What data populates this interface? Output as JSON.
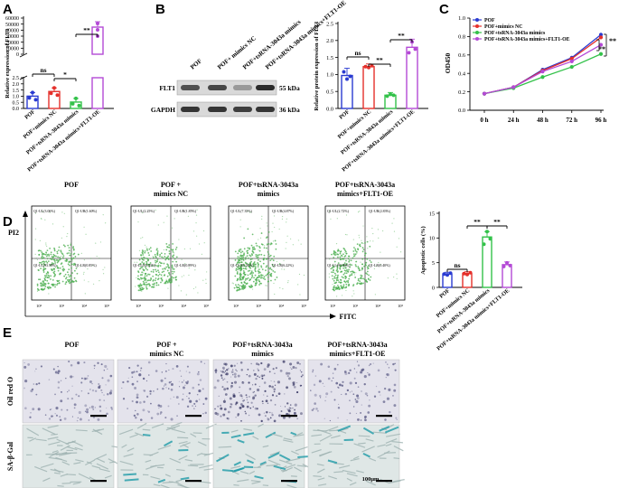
{
  "panels": {
    "A": "A",
    "B": "B",
    "C": "C",
    "D": "D",
    "E": "E"
  },
  "groups": [
    "POF",
    "POF+mimics NC",
    "POF+tsRNA-3043a mimics",
    "POF+tsRNA-3043a mimics+FLT1-OE"
  ],
  "colors": {
    "blue": "#2a3bd1",
    "red": "#e5302b",
    "green": "#33c24a",
    "purple": "#b44ad6",
    "sig": "#000000"
  },
  "chart_data": [
    {
      "id": "A",
      "type": "bar",
      "ylabel": "Relative expression of FLT1",
      "categories": [
        "POF",
        "POF+mimics NC",
        "POF+tsRNA-3043a mimics",
        "POF+tsRNA-3043a mimics+FLT1-OE"
      ],
      "values": [
        1.0,
        1.38,
        0.52,
        45000
      ],
      "yaxis_broken": true,
      "y_ticks_low": [
        "0.0",
        "0.5",
        "1.0",
        "1.5",
        "2.0",
        "2.5"
      ],
      "y_ticks_high": [
        "0",
        "10000",
        "20000",
        "30000",
        "40000",
        "50000",
        "60000"
      ],
      "significance": [
        {
          "pair": [
            0,
            1
          ],
          "label": "ns"
        },
        {
          "pair": [
            1,
            2
          ],
          "label": "*"
        },
        {
          "pair": [
            2,
            3
          ],
          "label": "**"
        }
      ]
    },
    {
      "id": "B-bar",
      "type": "bar",
      "ylabel": "Relative protein expression of FLT1",
      "categories": [
        "POF",
        "POF+mimics NC",
        "POF+tsRNA-3043a mimics",
        "POF+tsRNA-3043a mimics+FLT1-OE"
      ],
      "values": [
        0.97,
        1.23,
        0.39,
        1.8
      ],
      "ylim": [
        0,
        2.5
      ],
      "y_ticks": [
        "0.0",
        "0.5",
        "1.0",
        "1.5",
        "2.0",
        "2.5"
      ],
      "significance": [
        {
          "pair": [
            0,
            1
          ],
          "label": "ns"
        },
        {
          "pair": [
            1,
            2
          ],
          "label": "**"
        },
        {
          "pair": [
            2,
            3
          ],
          "label": "**"
        }
      ]
    },
    {
      "id": "C",
      "type": "line",
      "ylabel": "OD450",
      "x": [
        "0 h",
        "24 h",
        "48 h",
        "72 h",
        "96 h"
      ],
      "ylim": [
        0,
        1.0
      ],
      "y_ticks": [
        "0.0",
        "0.2",
        "0.4",
        "0.6",
        "0.8",
        "1.0"
      ],
      "series": [
        {
          "name": "POF",
          "values": [
            0.18,
            0.25,
            0.44,
            0.57,
            0.82
          ]
        },
        {
          "name": "POF+mimics NC",
          "values": [
            0.18,
            0.25,
            0.43,
            0.56,
            0.79
          ]
        },
        {
          "name": "POF+tsRNA-3043a mimics",
          "values": [
            0.18,
            0.24,
            0.36,
            0.47,
            0.61
          ]
        },
        {
          "name": "POF+tsRNA-3043a mimics+FLT1-OE",
          "values": [
            0.18,
            0.25,
            0.42,
            0.53,
            0.71
          ]
        }
      ],
      "significance": [
        {
          "label": "**"
        },
        {
          "label": "**"
        }
      ]
    },
    {
      "id": "D-bar",
      "type": "bar",
      "ylabel": "Apoptotic cells (%)",
      "categories": [
        "POF",
        "POF+mimics NC",
        "POF+tsRNA-3043a mimics",
        "POF+tsRNA-3043a mimics+FLT1-OE"
      ],
      "values": [
        2.7,
        2.8,
        10.2,
        4.6
      ],
      "ylim": [
        0,
        15
      ],
      "y_ticks": [
        "0",
        "5",
        "10",
        "15"
      ],
      "significance": [
        {
          "pair": [
            0,
            1
          ],
          "label": "ns"
        },
        {
          "pair": [
            1,
            2
          ],
          "label": "**"
        },
        {
          "pair": [
            2,
            3
          ],
          "label": "**"
        }
      ]
    }
  ],
  "western": {
    "lanes": [
      "POF",
      "POF+ mimics NC",
      "POF+tsRNA-3043a mimics",
      "POF+tsRNA-3043a mimics+FLT1-OE"
    ],
    "rows": [
      {
        "name": "FLT1",
        "size": "55 kDa"
      },
      {
        "name": "GAPDH",
        "size": "36 kDa"
      }
    ]
  },
  "flow": {
    "titles": [
      "POF",
      "POF +\nmimics NC",
      "POF+tsRNA-3043a\nmimics",
      "POF+tsRNA-3043a\nmimics+FLT1-OE"
    ],
    "y_axis": "PI2",
    "x_axis": "FITC",
    "quadrants": [
      [
        "Q1-UL(3.06%)",
        "Q1-UR(1.60%)",
        "Q1-LL(93.58%)",
        "Q1-LR(0.85%)"
      ],
      [
        "Q1-UL(2.25%)",
        "Q1-UR(1.85%)",
        "Q1-LL(93.03%)",
        "Q1-LR(0.89%)"
      ],
      [
        "Q1-UL(7.35%)",
        "Q1-UR(4.87%)",
        "Q1-LL(81.56%)",
        "Q1-LR(6.22%)"
      ],
      [
        "Q1-UL(2.72%)",
        "Q1-UR(2.83%)",
        "Q1-LL(93.99%)",
        "Q1-LR(0.40%)"
      ]
    ],
    "x_ticks": [
      "10²",
      "10³",
      "10⁴",
      "10⁵"
    ]
  },
  "stain": {
    "titles": [
      "POF",
      "POF +\nmimics NC",
      "POF+tsRNA-3043a\nmimics",
      "POF+tsRNA-3043a\nmimics+FLT1-OE"
    ],
    "rows": [
      "Oil red O",
      "SA-β-Gal"
    ],
    "scale_label": "100μm"
  }
}
